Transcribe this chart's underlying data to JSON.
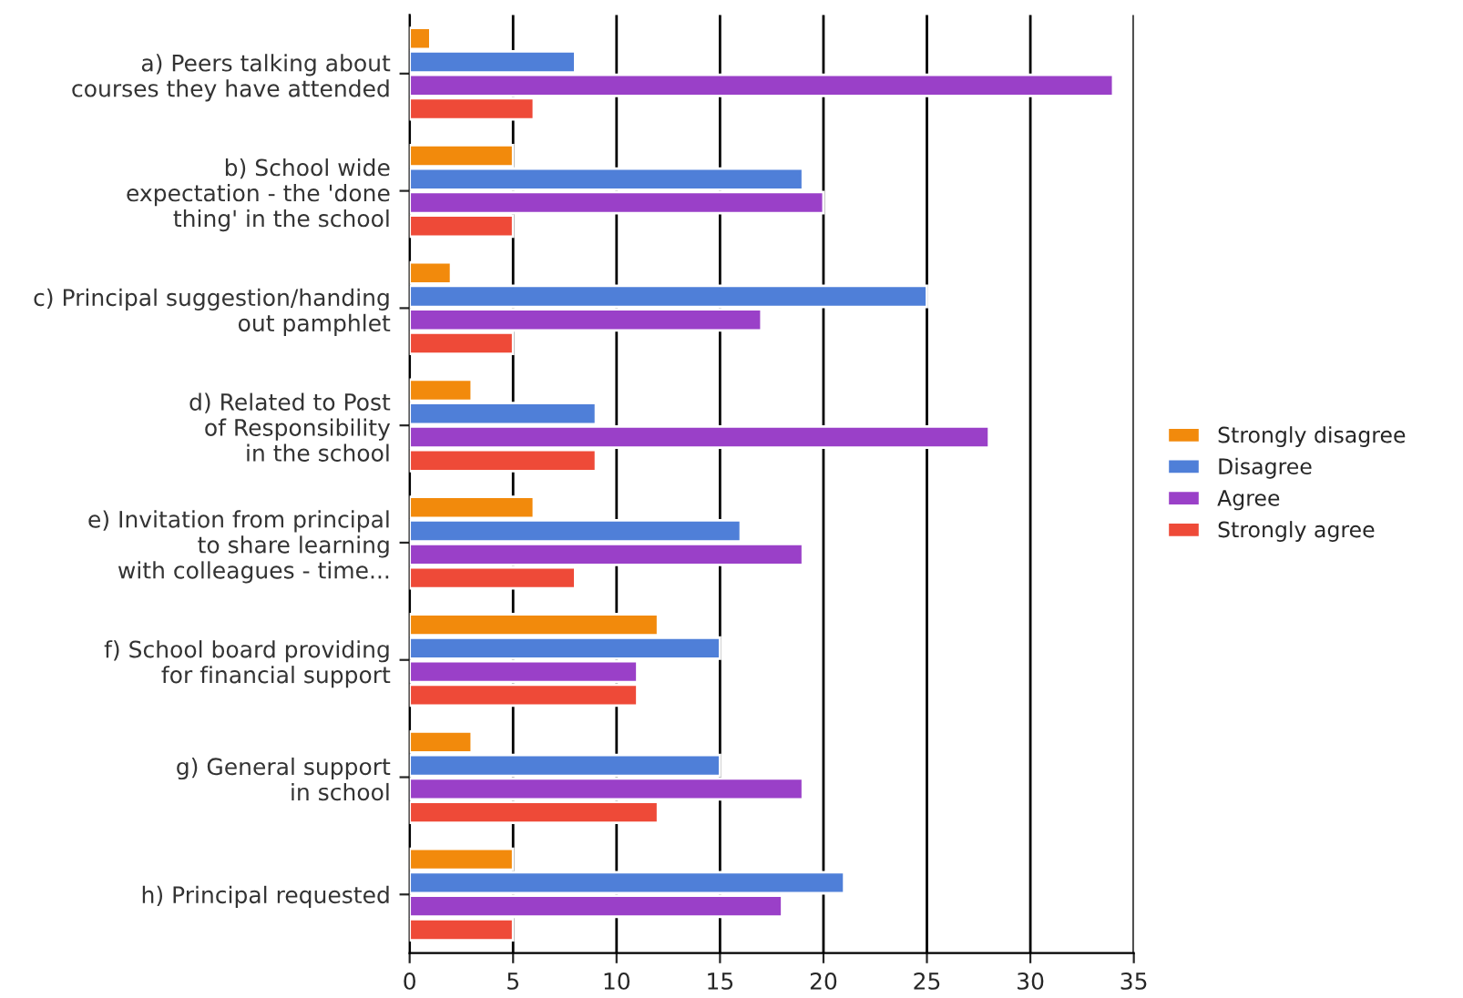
{
  "chart_data": {
    "type": "bar",
    "orientation": "horizontal",
    "categories": [
      "a) Peers talking about\ncourses they have attended",
      "b) School wide\nexpectation - the 'done\nthing' in the school",
      "c) Principal suggestion/handing\nout pamphlet",
      "d) Related to Post\nof Responsibility\nin the school",
      "e) Invitation from principal\nto share learning\nwith colleagues - time...",
      "f) School board providing\nfor financial support",
      "g) General support\nin school",
      "h) Principal requested"
    ],
    "series": [
      {
        "name": "Strongly disagree",
        "color": "#f28a0c",
        "values": [
          1,
          5,
          2,
          3,
          6,
          12,
          3,
          5
        ]
      },
      {
        "name": "Disagree",
        "color": "#4f7fd8",
        "values": [
          8,
          19,
          25,
          9,
          16,
          15,
          15,
          21
        ]
      },
      {
        "name": "Agree",
        "color": "#9a40c8",
        "values": [
          34,
          20,
          17,
          28,
          19,
          11,
          19,
          18
        ]
      },
      {
        "name": "Strongly agree",
        "color": "#ee4a38",
        "values": [
          6,
          5,
          5,
          9,
          8,
          11,
          12,
          5
        ]
      }
    ],
    "xlim": [
      0,
      35
    ],
    "xticks": [
      0,
      5,
      10,
      15,
      20,
      25,
      30,
      35
    ],
    "grid": "x",
    "legend": "right"
  }
}
